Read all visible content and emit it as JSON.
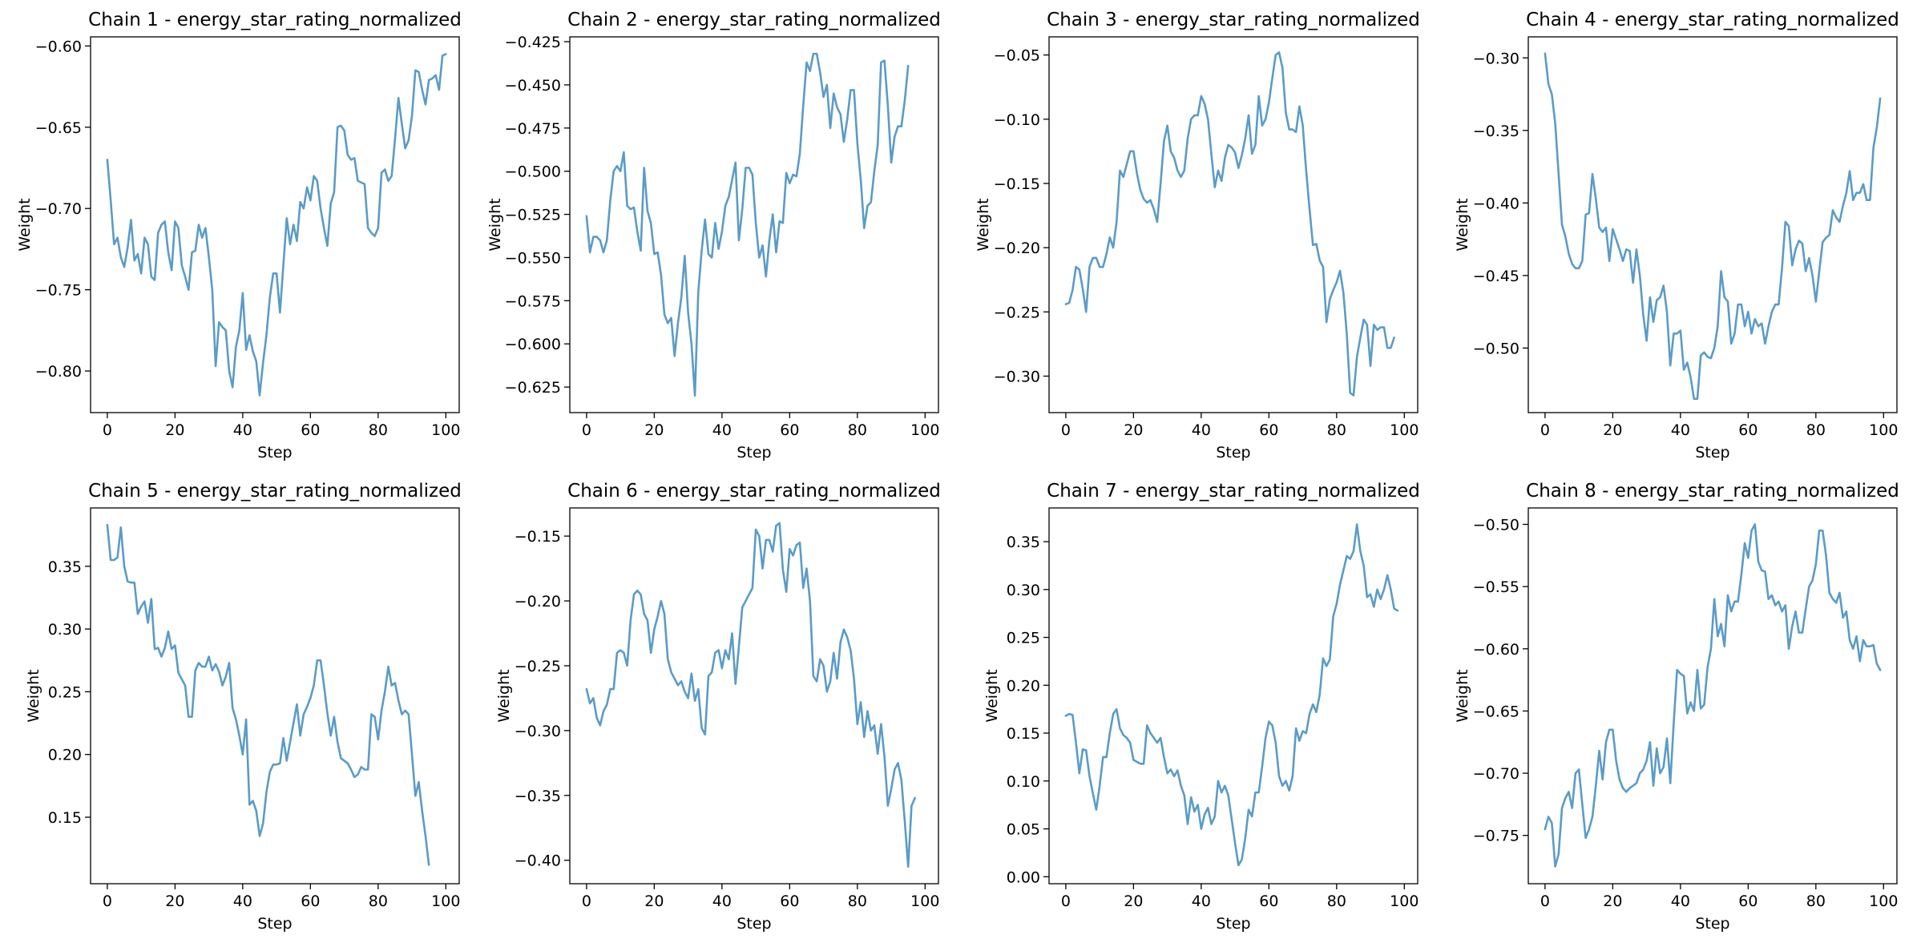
{
  "chart_data": [
    {
      "type": "line",
      "title": "Chain 1 - energy_star_rating_normalized",
      "xlabel": "Step",
      "ylabel": "Weight",
      "xlim": [
        -4.95,
        103.95
      ],
      "ylim": [
        -0.8256,
        -0.5944
      ],
      "xticks": [
        0,
        20,
        40,
        60,
        80,
        100
      ],
      "yticks": [
        -0.8,
        -0.75,
        -0.7,
        -0.65,
        -0.6
      ],
      "yticklabels": [
        "−0.80",
        "−0.75",
        "−0.70",
        "−0.65",
        "−0.60"
      ],
      "grid": false,
      "color": "#5b9bc7",
      "y": [
        -0.67,
        -0.695,
        -0.722,
        -0.718,
        -0.73,
        -0.736,
        -0.724,
        -0.707,
        -0.732,
        -0.728,
        -0.74,
        -0.718,
        -0.722,
        -0.742,
        -0.744,
        -0.715,
        -0.71,
        -0.708,
        -0.727,
        -0.738,
        -0.708,
        -0.712,
        -0.735,
        -0.742,
        -0.75,
        -0.727,
        -0.726,
        -0.71,
        -0.718,
        -0.712,
        -0.73,
        -0.75,
        -0.797,
        -0.77,
        -0.773,
        -0.775,
        -0.8,
        -0.81,
        -0.785,
        -0.775,
        -0.752,
        -0.787,
        -0.778,
        -0.788,
        -0.794,
        -0.815,
        -0.795,
        -0.778,
        -0.755,
        -0.74,
        -0.74,
        -0.764,
        -0.735,
        -0.706,
        -0.722,
        -0.71,
        -0.72,
        -0.696,
        -0.7,
        -0.687,
        -0.695,
        -0.68,
        -0.683,
        -0.7,
        -0.712,
        -0.723,
        -0.697,
        -0.69,
        -0.65,
        -0.649,
        -0.652,
        -0.667,
        -0.67,
        -0.669,
        -0.683,
        -0.684,
        -0.685,
        -0.712,
        -0.715,
        -0.717,
        -0.712,
        -0.678,
        -0.676,
        -0.683,
        -0.68,
        -0.657,
        -0.632,
        -0.648,
        -0.663,
        -0.658,
        -0.643,
        -0.615,
        -0.616,
        -0.627,
        -0.636,
        -0.621,
        -0.62,
        -0.618,
        -0.627,
        -0.606,
        -0.605
      ]
    },
    {
      "type": "line",
      "title": "Chain 2 - energy_star_rating_normalized",
      "xlabel": "Step",
      "ylabel": "Weight",
      "xlim": [
        -4.95,
        103.95
      ],
      "ylim": [
        -0.6398,
        -0.4222
      ],
      "xticks": [
        0,
        20,
        40,
        60,
        80,
        100
      ],
      "yticks": [
        -0.625,
        -0.6,
        -0.575,
        -0.55,
        -0.525,
        -0.5,
        -0.475,
        -0.45,
        -0.425
      ],
      "yticklabels": [
        "−0.625",
        "−0.600",
        "−0.575",
        "−0.550",
        "−0.525",
        "−0.500",
        "−0.475",
        "−0.450",
        "−0.425"
      ],
      "grid": false,
      "color": "#5b9bc7",
      "y": [
        -0.526,
        -0.547,
        -0.538,
        -0.538,
        -0.54,
        -0.547,
        -0.54,
        -0.517,
        -0.5,
        -0.497,
        -0.5,
        -0.489,
        -0.52,
        -0.522,
        -0.521,
        -0.535,
        -0.546,
        -0.498,
        -0.523,
        -0.53,
        -0.548,
        -0.547,
        -0.56,
        -0.583,
        -0.588,
        -0.585,
        -0.607,
        -0.588,
        -0.573,
        -0.549,
        -0.582,
        -0.6,
        -0.63,
        -0.57,
        -0.546,
        -0.528,
        -0.548,
        -0.55,
        -0.53,
        -0.545,
        -0.535,
        -0.52,
        -0.515,
        -0.505,
        -0.495,
        -0.54,
        -0.522,
        -0.498,
        -0.498,
        -0.502,
        -0.53,
        -0.55,
        -0.543,
        -0.561,
        -0.54,
        -0.525,
        -0.547,
        -0.529,
        -0.53,
        -0.501,
        -0.507,
        -0.502,
        -0.503,
        -0.49,
        -0.462,
        -0.437,
        -0.442,
        -0.432,
        -0.432,
        -0.443,
        -0.457,
        -0.45,
        -0.475,
        -0.455,
        -0.463,
        -0.467,
        -0.483,
        -0.47,
        -0.453,
        -0.453,
        -0.484,
        -0.505,
        -0.533,
        -0.52,
        -0.518,
        -0.5,
        -0.485,
        -0.437,
        -0.436,
        -0.462,
        -0.495,
        -0.48,
        -0.474,
        -0.474,
        -0.459,
        -0.439
      ]
    },
    {
      "type": "line",
      "title": "Chain 3 - energy_star_rating_normalized",
      "xlabel": "Step",
      "ylabel": "Weight",
      "xlim": [
        -4.95,
        103.95
      ],
      "ylim": [
        -0.3284,
        -0.0359
      ],
      "xticks": [
        0,
        20,
        40,
        60,
        80,
        100
      ],
      "yticks": [
        -0.3,
        -0.25,
        -0.2,
        -0.15,
        -0.1,
        -0.05
      ],
      "yticklabels": [
        "−0.30",
        "−0.25",
        "−0.20",
        "−0.15",
        "−0.10",
        "−0.05"
      ],
      "grid": false,
      "color": "#5b9bc7",
      "y": [
        -0.244,
        -0.243,
        -0.233,
        -0.215,
        -0.217,
        -0.232,
        -0.25,
        -0.215,
        -0.208,
        -0.208,
        -0.215,
        -0.215,
        -0.205,
        -0.192,
        -0.2,
        -0.18,
        -0.14,
        -0.145,
        -0.135,
        -0.125,
        -0.125,
        -0.142,
        -0.155,
        -0.162,
        -0.165,
        -0.163,
        -0.17,
        -0.18,
        -0.15,
        -0.117,
        -0.105,
        -0.125,
        -0.13,
        -0.14,
        -0.145,
        -0.14,
        -0.115,
        -0.1,
        -0.097,
        -0.097,
        -0.082,
        -0.088,
        -0.1,
        -0.127,
        -0.153,
        -0.14,
        -0.148,
        -0.13,
        -0.12,
        -0.122,
        -0.126,
        -0.138,
        -0.128,
        -0.115,
        -0.097,
        -0.127,
        -0.12,
        -0.082,
        -0.105,
        -0.1,
        -0.087,
        -0.068,
        -0.05,
        -0.048,
        -0.06,
        -0.095,
        -0.108,
        -0.108,
        -0.11,
        -0.09,
        -0.105,
        -0.14,
        -0.17,
        -0.198,
        -0.197,
        -0.21,
        -0.215,
        -0.258,
        -0.24,
        -0.233,
        -0.227,
        -0.218,
        -0.235,
        -0.267,
        -0.313,
        -0.315,
        -0.285,
        -0.27,
        -0.256,
        -0.26,
        -0.292,
        -0.26,
        -0.264,
        -0.262,
        -0.262,
        -0.278,
        -0.278,
        -0.27
      ]
    },
    {
      "type": "line",
      "title": "Chain 4 - energy_star_rating_normalized",
      "xlabel": "Step",
      "ylabel": "Weight",
      "xlim": [
        -4.95,
        103.95
      ],
      "ylim": [
        -0.5445,
        -0.2855
      ],
      "xticks": [
        0,
        20,
        40,
        60,
        80,
        100
      ],
      "yticks": [
        -0.5,
        -0.45,
        -0.4,
        -0.35,
        -0.3
      ],
      "yticklabels": [
        "−0.50",
        "−0.45",
        "−0.40",
        "−0.35",
        "−0.30"
      ],
      "grid": false,
      "color": "#5b9bc7",
      "y": [
        -0.297,
        -0.318,
        -0.325,
        -0.345,
        -0.38,
        -0.415,
        -0.423,
        -0.435,
        -0.442,
        -0.445,
        -0.445,
        -0.44,
        -0.408,
        -0.407,
        -0.38,
        -0.397,
        -0.417,
        -0.42,
        -0.417,
        -0.44,
        -0.418,
        -0.425,
        -0.432,
        -0.44,
        -0.432,
        -0.433,
        -0.455,
        -0.432,
        -0.45,
        -0.477,
        -0.495,
        -0.465,
        -0.482,
        -0.467,
        -0.465,
        -0.457,
        -0.475,
        -0.512,
        -0.49,
        -0.49,
        -0.488,
        -0.515,
        -0.51,
        -0.52,
        -0.535,
        -0.535,
        -0.505,
        -0.503,
        -0.506,
        -0.507,
        -0.5,
        -0.485,
        -0.447,
        -0.465,
        -0.468,
        -0.497,
        -0.49,
        -0.47,
        -0.47,
        -0.485,
        -0.475,
        -0.49,
        -0.48,
        -0.485,
        -0.483,
        -0.497,
        -0.485,
        -0.475,
        -0.47,
        -0.47,
        -0.445,
        -0.413,
        -0.416,
        -0.443,
        -0.432,
        -0.426,
        -0.428,
        -0.447,
        -0.438,
        -0.45,
        -0.468,
        -0.447,
        -0.427,
        -0.424,
        -0.422,
        -0.405,
        -0.41,
        -0.413,
        -0.402,
        -0.393,
        -0.378,
        -0.398,
        -0.393,
        -0.393,
        -0.387,
        -0.398,
        -0.398,
        -0.362,
        -0.348,
        -0.328
      ]
    },
    {
      "type": "line",
      "title": "Chain 5 - energy_star_rating_normalized",
      "xlabel": "Step",
      "ylabel": "Weight",
      "xlim": [
        -4.95,
        103.95
      ],
      "ylim": [
        0.097,
        0.3965
      ],
      "xticks": [
        0,
        20,
        40,
        60,
        80,
        100
      ],
      "yticks": [
        0.15,
        0.2,
        0.25,
        0.3,
        0.35
      ],
      "yticklabels": [
        "0.15",
        "0.20",
        "0.25",
        "0.30",
        "0.35"
      ],
      "grid": false,
      "color": "#5b9bc7",
      "y": [
        0.383,
        0.355,
        0.355,
        0.357,
        0.381,
        0.35,
        0.338,
        0.337,
        0.337,
        0.312,
        0.318,
        0.322,
        0.305,
        0.324,
        0.284,
        0.285,
        0.278,
        0.285,
        0.298,
        0.284,
        0.287,
        0.265,
        0.26,
        0.255,
        0.23,
        0.23,
        0.267,
        0.273,
        0.27,
        0.27,
        0.278,
        0.267,
        0.272,
        0.266,
        0.255,
        0.262,
        0.273,
        0.237,
        0.228,
        0.215,
        0.2,
        0.228,
        0.16,
        0.163,
        0.155,
        0.135,
        0.145,
        0.17,
        0.186,
        0.192,
        0.192,
        0.193,
        0.213,
        0.195,
        0.21,
        0.225,
        0.24,
        0.215,
        0.232,
        0.238,
        0.245,
        0.255,
        0.275,
        0.275,
        0.255,
        0.233,
        0.215,
        0.23,
        0.21,
        0.197,
        0.195,
        0.193,
        0.188,
        0.182,
        0.184,
        0.19,
        0.188,
        0.188,
        0.232,
        0.23,
        0.212,
        0.235,
        0.25,
        0.27,
        0.255,
        0.257,
        0.243,
        0.232,
        0.235,
        0.232,
        0.2,
        0.167,
        0.178,
        0.155,
        0.135,
        0.112
      ]
    },
    {
      "type": "line",
      "title": "Chain 6 - energy_star_rating_normalized",
      "xlabel": "Step",
      "ylabel": "Weight",
      "xlim": [
        -4.95,
        103.95
      ],
      "ylim": [
        -0.4181,
        -0.1283
      ],
      "xticks": [
        0,
        20,
        40,
        60,
        80,
        100
      ],
      "yticks": [
        -0.4,
        -0.35,
        -0.3,
        -0.25,
        -0.2,
        -0.15
      ],
      "yticklabels": [
        "−0.40",
        "−0.35",
        "−0.30",
        "−0.25",
        "−0.20",
        "−0.15"
      ],
      "grid": false,
      "color": "#5b9bc7",
      "y": [
        -0.268,
        -0.279,
        -0.275,
        -0.29,
        -0.296,
        -0.285,
        -0.28,
        -0.268,
        -0.268,
        -0.24,
        -0.238,
        -0.24,
        -0.25,
        -0.215,
        -0.195,
        -0.192,
        -0.195,
        -0.21,
        -0.215,
        -0.24,
        -0.222,
        -0.212,
        -0.2,
        -0.21,
        -0.245,
        -0.255,
        -0.26,
        -0.265,
        -0.262,
        -0.27,
        -0.275,
        -0.256,
        -0.277,
        -0.268,
        -0.298,
        -0.303,
        -0.258,
        -0.255,
        -0.24,
        -0.238,
        -0.252,
        -0.238,
        -0.245,
        -0.225,
        -0.264,
        -0.235,
        -0.205,
        -0.2,
        -0.195,
        -0.19,
        -0.145,
        -0.15,
        -0.175,
        -0.153,
        -0.153,
        -0.162,
        -0.142,
        -0.14,
        -0.176,
        -0.193,
        -0.16,
        -0.165,
        -0.157,
        -0.155,
        -0.19,
        -0.175,
        -0.2,
        -0.258,
        -0.262,
        -0.245,
        -0.25,
        -0.27,
        -0.262,
        -0.24,
        -0.26,
        -0.232,
        -0.222,
        -0.228,
        -0.238,
        -0.26,
        -0.295,
        -0.278,
        -0.305,
        -0.285,
        -0.3,
        -0.296,
        -0.318,
        -0.295,
        -0.32,
        -0.358,
        -0.345,
        -0.33,
        -0.325,
        -0.338,
        -0.37,
        -0.405,
        -0.358,
        -0.352
      ]
    },
    {
      "type": "line",
      "title": "Chain 7 - energy_star_rating_normalized",
      "xlabel": "Step",
      "ylabel": "Weight",
      "xlim": [
        -4.95,
        103.95
      ],
      "ylim": [
        -0.0073,
        0.3852
      ],
      "xticks": [
        0,
        20,
        40,
        60,
        80,
        100
      ],
      "yticks": [
        0.0,
        0.05,
        0.1,
        0.15,
        0.2,
        0.25,
        0.3,
        0.35
      ],
      "yticklabels": [
        "0.00",
        "0.05",
        "0.10",
        "0.15",
        "0.20",
        "0.25",
        "0.30",
        "0.35"
      ],
      "grid": false,
      "color": "#5b9bc7",
      "y": [
        0.168,
        0.17,
        0.169,
        0.14,
        0.108,
        0.133,
        0.132,
        0.105,
        0.087,
        0.07,
        0.095,
        0.125,
        0.125,
        0.15,
        0.17,
        0.175,
        0.155,
        0.148,
        0.145,
        0.14,
        0.122,
        0.12,
        0.118,
        0.118,
        0.158,
        0.15,
        0.145,
        0.14,
        0.145,
        0.125,
        0.108,
        0.112,
        0.105,
        0.111,
        0.095,
        0.085,
        0.055,
        0.083,
        0.068,
        0.075,
        0.05,
        0.065,
        0.072,
        0.055,
        0.063,
        0.1,
        0.088,
        0.095,
        0.085,
        0.06,
        0.035,
        0.012,
        0.018,
        0.04,
        0.07,
        0.063,
        0.088,
        0.088,
        0.115,
        0.145,
        0.162,
        0.158,
        0.14,
        0.105,
        0.095,
        0.1,
        0.09,
        0.105,
        0.155,
        0.142,
        0.152,
        0.15,
        0.17,
        0.18,
        0.172,
        0.19,
        0.228,
        0.22,
        0.227,
        0.272,
        0.285,
        0.305,
        0.32,
        0.335,
        0.332,
        0.34,
        0.368,
        0.34,
        0.325,
        0.292,
        0.295,
        0.282,
        0.3,
        0.29,
        0.3,
        0.315,
        0.3,
        0.28,
        0.278
      ]
    },
    {
      "type": "line",
      "title": "Chain 8 - energy_star_rating_normalized",
      "xlabel": "Step",
      "ylabel": "Weight",
      "xlim": [
        -4.95,
        103.95
      ],
      "ylim": [
        -0.7888,
        -0.4868
      ],
      "xticks": [
        0,
        20,
        40,
        60,
        80,
        100
      ],
      "yticks": [
        -0.75,
        -0.7,
        -0.65,
        -0.6,
        -0.55,
        -0.5
      ],
      "yticklabels": [
        "−0.75",
        "−0.70",
        "−0.65",
        "−0.60",
        "−0.55",
        "−0.50"
      ],
      "grid": false,
      "color": "#5b9bc7",
      "y": [
        -0.745,
        -0.735,
        -0.74,
        -0.775,
        -0.765,
        -0.728,
        -0.72,
        -0.715,
        -0.728,
        -0.7,
        -0.697,
        -0.725,
        -0.752,
        -0.745,
        -0.735,
        -0.71,
        -0.682,
        -0.705,
        -0.675,
        -0.665,
        -0.665,
        -0.69,
        -0.705,
        -0.712,
        -0.715,
        -0.712,
        -0.71,
        -0.708,
        -0.7,
        -0.697,
        -0.69,
        -0.675,
        -0.71,
        -0.68,
        -0.7,
        -0.695,
        -0.672,
        -0.708,
        -0.66,
        -0.617,
        -0.62,
        -0.622,
        -0.652,
        -0.643,
        -0.65,
        -0.617,
        -0.648,
        -0.645,
        -0.615,
        -0.6,
        -0.56,
        -0.59,
        -0.58,
        -0.598,
        -0.557,
        -0.57,
        -0.562,
        -0.562,
        -0.54,
        -0.515,
        -0.527,
        -0.505,
        -0.5,
        -0.53,
        -0.537,
        -0.538,
        -0.56,
        -0.557,
        -0.565,
        -0.562,
        -0.57,
        -0.565,
        -0.6,
        -0.582,
        -0.57,
        -0.587,
        -0.587,
        -0.568,
        -0.55,
        -0.545,
        -0.532,
        -0.505,
        -0.505,
        -0.525,
        -0.555,
        -0.56,
        -0.563,
        -0.555,
        -0.575,
        -0.57,
        -0.593,
        -0.6,
        -0.59,
        -0.61,
        -0.593,
        -0.598,
        -0.598,
        -0.597,
        -0.612,
        -0.617
      ]
    }
  ]
}
